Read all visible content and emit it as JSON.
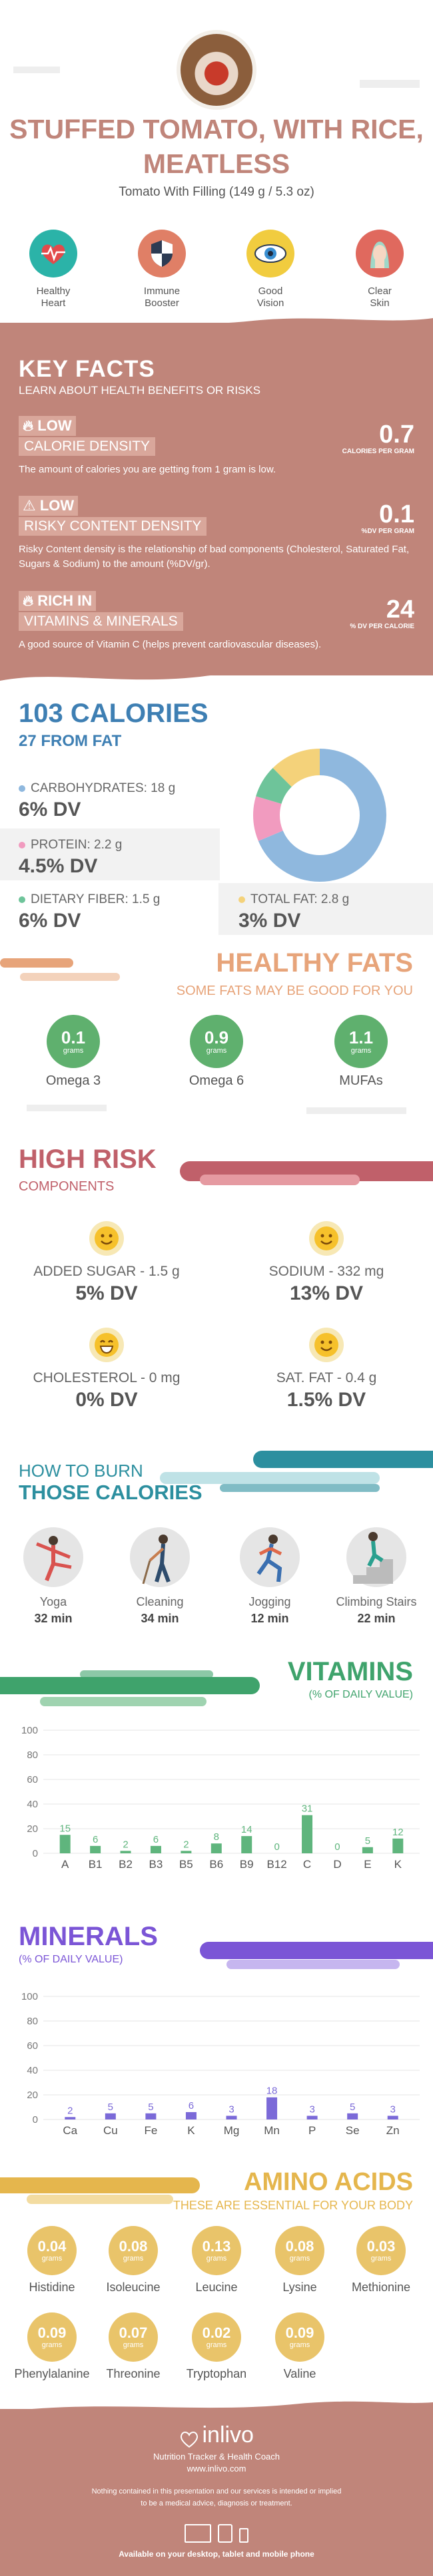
{
  "header": {
    "title": "STUFFED TOMATO, WITH RICE, MEATLESS",
    "subtitle": "Tomato With Filling (149 g / 5.3 oz)"
  },
  "benefits": [
    {
      "label": "Healthy\nHeart",
      "icon": "heart-rate-icon",
      "color": "#2bb3a8"
    },
    {
      "label": "Immune\nBooster",
      "icon": "shield-icon",
      "color": "#e07f66"
    },
    {
      "label": "Good\nVision",
      "icon": "eye-icon",
      "color": "#f1cc3f"
    },
    {
      "label": "Clear\nSkin",
      "icon": "face-icon",
      "color": "#e0695e"
    }
  ],
  "key_facts": {
    "title": "KEY FACTS",
    "subtitle": "LEARN ABOUT HEALTH BENEFITS OR RISKS",
    "items": [
      {
        "level": "LOW",
        "name": "CALORIE DENSITY",
        "value": "0.7",
        "unit": "CALORIES PER GRAM",
        "desc": "The amount of calories you are getting from 1 gram is low.",
        "icon": "flame-icon"
      },
      {
        "level": "LOW",
        "name": "RISKY CONTENT DENSITY",
        "value": "0.1",
        "unit": "%DV PER GRAM",
        "desc": "Risky Content density is the relationship of bad components (Cholesterol, Saturated Fat, Sugars & Sodium) to the amount (%DV/gr).",
        "icon": "warning-icon"
      },
      {
        "level": "RICH  IN",
        "name": "VITAMINS & MINERALS",
        "value": "24",
        "unit": "% DV PER CALORIE",
        "desc": "A good source of Vitamin C (helps prevent cardiovascular diseases).",
        "icon": "flame-icon"
      }
    ]
  },
  "calories": {
    "title": "103 CALORIES",
    "subtitle": "27 FROM FAT",
    "macros": [
      {
        "label": "CARBOHYDRATES: 18 g",
        "dv": "6% DV",
        "color": "#8fb8de"
      },
      {
        "label": "PROTEIN: 2.2 g",
        "dv": "4.5% DV",
        "color": "#f19bbf"
      },
      {
        "label": "DIETARY FIBER: 1.5 g",
        "dv": "6% DV",
        "color": "#6ec49a"
      },
      {
        "label": "TOTAL FAT: 2.8 g",
        "dv": "3% DV",
        "color": "#f4d27a"
      }
    ]
  },
  "healthy_fats": {
    "title": "HEALTHY FATS",
    "subtitle": "SOME FATS MAY BE GOOD FOR YOU",
    "items": [
      {
        "value": "0.1",
        "unit": "grams",
        "label": "Omega 3"
      },
      {
        "value": "0.9",
        "unit": "grams",
        "label": "Omega 6"
      },
      {
        "value": "1.1",
        "unit": "grams",
        "label": "MUFAs"
      }
    ]
  },
  "high_risk": {
    "title": "HIGH RISK",
    "subtitle": "COMPONENTS",
    "items": [
      {
        "label": "ADDED SUGAR - 1.5 g",
        "dv": "5% DV"
      },
      {
        "label": "SODIUM - 332 mg",
        "dv": "13% DV"
      },
      {
        "label": "CHOLESTEROL - 0 mg",
        "dv": "0% DV"
      },
      {
        "label": "SAT. FAT - 0.4 g",
        "dv": "1.5% DV"
      }
    ]
  },
  "burn": {
    "title_a": "HOW TO BURN",
    "title_b": "THOSE CALORIES",
    "items": [
      {
        "label": "Yoga",
        "time": "32 min"
      },
      {
        "label": "Cleaning",
        "time": "34 min"
      },
      {
        "label": "Jogging",
        "time": "12 min"
      },
      {
        "label": "Climbing Stairs",
        "time": "22 min"
      }
    ]
  },
  "vitamins": {
    "title": "VITAMINS",
    "subtitle": "(% OF DAILY VALUE)"
  },
  "minerals": {
    "title": "MINERALS",
    "subtitle": "(% OF DAILY VALUE)"
  },
  "chart_data": [
    {
      "type": "bar",
      "categories": [
        "A",
        "B1",
        "B2",
        "B3",
        "B5",
        "B6",
        "B9",
        "B12",
        "C",
        "D",
        "E",
        "K"
      ],
      "values": [
        15,
        6,
        2,
        6,
        2,
        8,
        14,
        0,
        31,
        0,
        5,
        12
      ],
      "ylim": [
        0,
        100
      ],
      "yticks": [
        0,
        20,
        40,
        60,
        80,
        100
      ],
      "color": "#5fb57d"
    },
    {
      "type": "bar",
      "categories": [
        "Ca",
        "Cu",
        "Fe",
        "K",
        "Mg",
        "Mn",
        "P",
        "Se",
        "Zn"
      ],
      "values": [
        2,
        5,
        5,
        6,
        3,
        18,
        3,
        5,
        3
      ],
      "ylim": [
        0,
        100
      ],
      "yticks": [
        0,
        20,
        40,
        60,
        80,
        100
      ],
      "color": "#7b6ad8"
    }
  ],
  "amino": {
    "title": "AMINO ACIDS",
    "subtitle": "THESE ARE ESSENTIAL FOR YOUR BODY",
    "items": [
      {
        "value": "0.04",
        "unit": "grams",
        "label": "Histidine"
      },
      {
        "value": "0.08",
        "unit": "grams",
        "label": "Isoleucine"
      },
      {
        "value": "0.13",
        "unit": "grams",
        "label": "Leucine"
      },
      {
        "value": "0.08",
        "unit": "grams",
        "label": "Lysine"
      },
      {
        "value": "0.03",
        "unit": "grams",
        "label": "Methionine"
      },
      {
        "value": "0.09",
        "unit": "grams",
        "label": "Phenylalanine"
      },
      {
        "value": "0.07",
        "unit": "grams",
        "label": "Threonine"
      },
      {
        "value": "0.02",
        "unit": "grams",
        "label": "Tryptophan"
      },
      {
        "value": "0.09",
        "unit": "grams",
        "label": "Valine"
      }
    ]
  },
  "footer": {
    "brand": "inlivo",
    "tagline": "Nutrition Tracker & Health Coach",
    "url": "www.inlivo.com",
    "disclaimer_1": "Nothing contained in this presentation and our services is intended or implied",
    "disclaimer_2": "to be a medical advice, diagnosis or treatment.",
    "available": "Available on your desktop, tablet and mobile phone"
  }
}
